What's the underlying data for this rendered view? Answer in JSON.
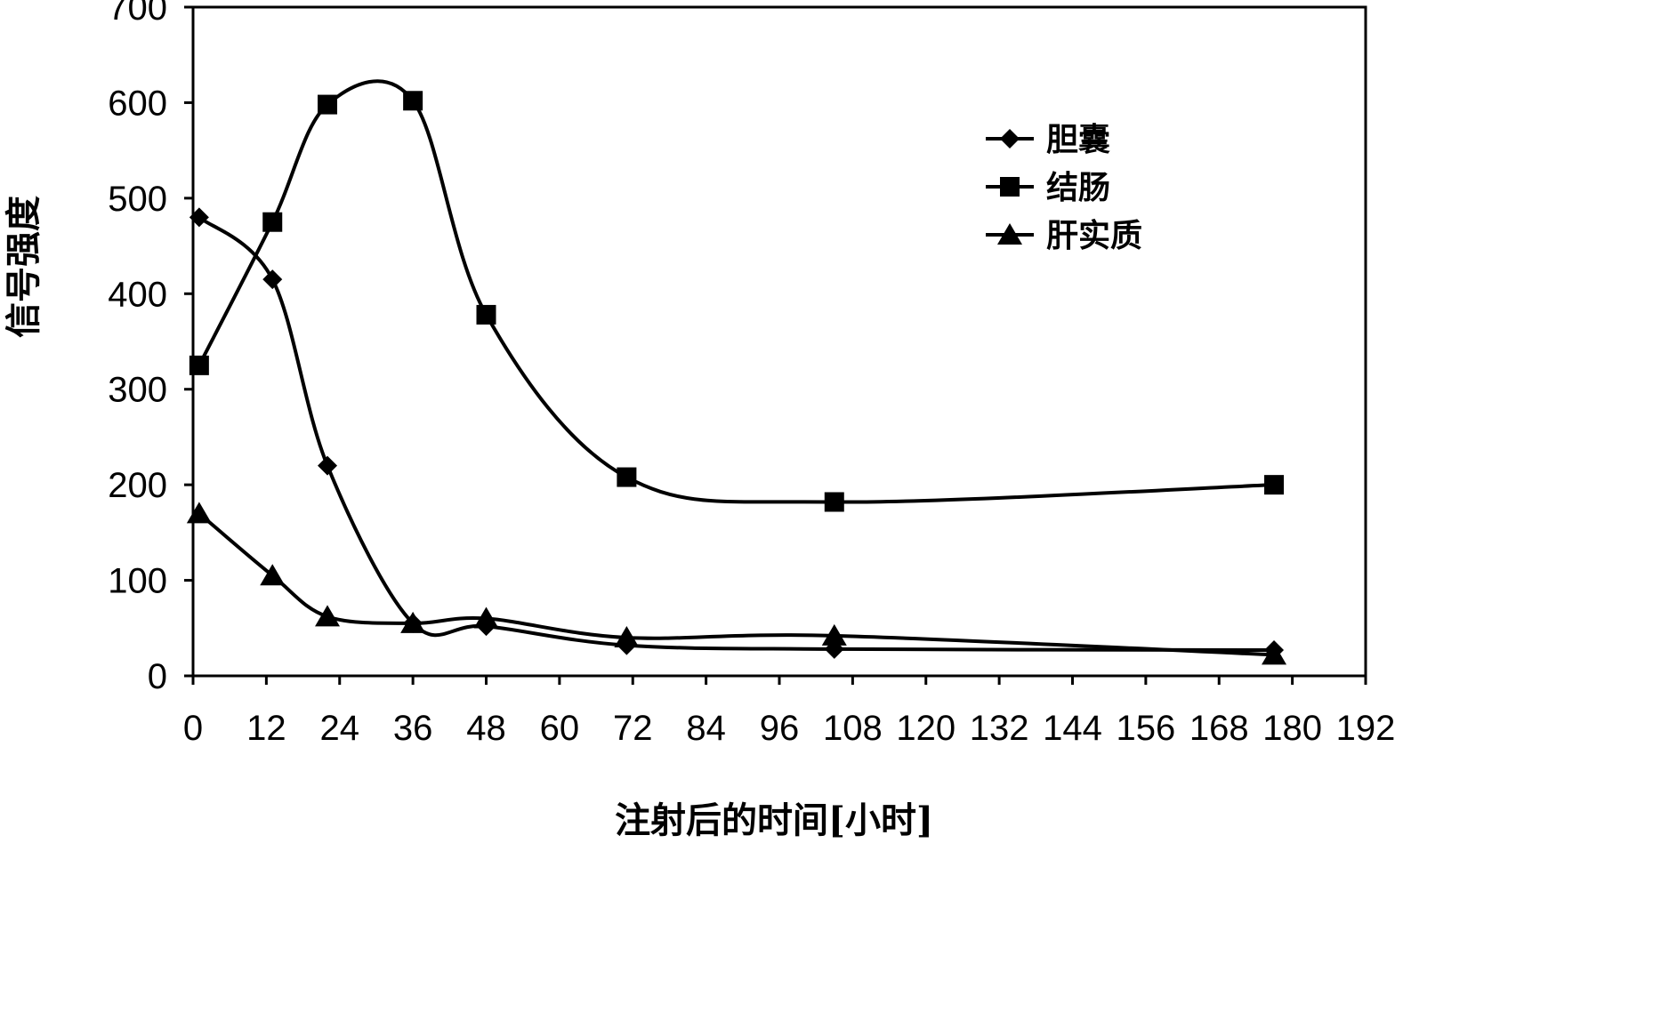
{
  "chart_data": {
    "type": "line",
    "title": "",
    "xlabel": "注射后的时间[小时]",
    "ylabel": "信号强度",
    "xlim": [
      0,
      192
    ],
    "ylim": [
      0,
      700
    ],
    "x_ticks": [
      "0",
      "12",
      "24",
      "36",
      "48",
      "60",
      "72",
      "84",
      "96",
      "108",
      "120",
      "132",
      "144",
      "156",
      "168",
      "180",
      "192"
    ],
    "y_ticks": [
      "0",
      "100",
      "200",
      "300",
      "400",
      "500",
      "600",
      "700"
    ],
    "grid": false,
    "smooth": true,
    "legend_position": "top-right",
    "series": [
      {
        "name": "胆囊",
        "marker": "diamond",
        "x": [
          1,
          13,
          22,
          36,
          48,
          71,
          105,
          177
        ],
        "y": [
          480,
          415,
          220,
          55,
          52,
          32,
          28,
          27
        ]
      },
      {
        "name": "结肠",
        "marker": "square",
        "x": [
          1,
          13,
          22,
          36,
          48,
          71,
          105,
          177
        ],
        "y": [
          325,
          475,
          598,
          602,
          378,
          208,
          182,
          200
        ]
      },
      {
        "name": "肝实质",
        "marker": "triangle",
        "x": [
          1,
          13,
          22,
          36,
          48,
          71,
          105,
          177
        ],
        "y": [
          170,
          105,
          62,
          55,
          60,
          40,
          42,
          22
        ]
      }
    ]
  }
}
